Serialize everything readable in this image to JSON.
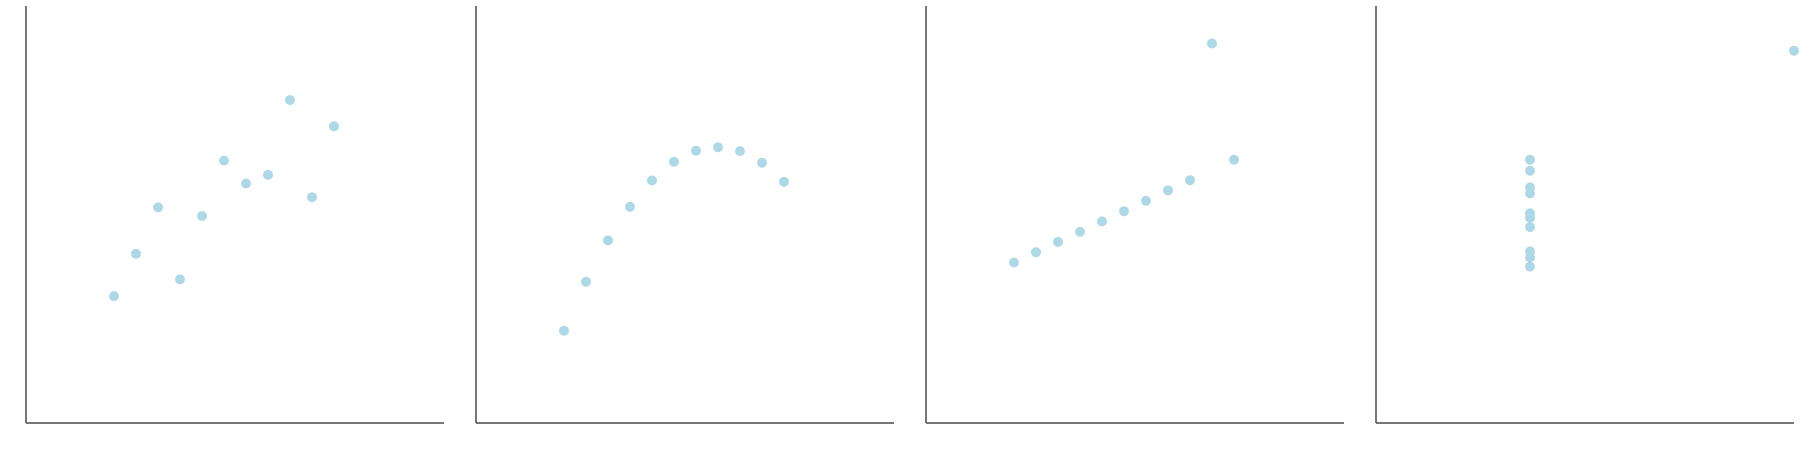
{
  "chart_data": [
    {
      "type": "scatter",
      "title": "",
      "xlabel": "",
      "ylabel": "",
      "xlim": [
        0,
        19
      ],
      "ylim": [
        0,
        14
      ],
      "grid": false,
      "color": "#add8e6",
      "x": [
        10,
        8,
        13,
        9,
        11,
        14,
        6,
        4,
        12,
        7,
        5
      ],
      "y": [
        8.04,
        6.95,
        7.58,
        8.81,
        8.33,
        9.96,
        7.24,
        4.26,
        10.84,
        4.82,
        5.68
      ]
    },
    {
      "type": "scatter",
      "title": "",
      "xlabel": "",
      "ylabel": "",
      "xlim": [
        0,
        19
      ],
      "ylim": [
        0,
        14
      ],
      "grid": false,
      "color": "#add8e6",
      "x": [
        10,
        8,
        13,
        9,
        11,
        14,
        6,
        4,
        12,
        7,
        5
      ],
      "y": [
        9.14,
        8.14,
        8.74,
        8.77,
        9.26,
        8.1,
        6.13,
        3.1,
        9.13,
        7.26,
        4.74
      ]
    },
    {
      "type": "scatter",
      "title": "",
      "xlabel": "",
      "ylabel": "",
      "xlim": [
        0,
        19
      ],
      "ylim": [
        0,
        14
      ],
      "grid": false,
      "color": "#add8e6",
      "x": [
        10,
        8,
        13,
        9,
        11,
        14,
        6,
        4,
        12,
        7,
        5
      ],
      "y": [
        7.46,
        6.77,
        12.74,
        7.11,
        7.81,
        8.84,
        6.08,
        5.39,
        8.15,
        6.42,
        5.73
      ]
    },
    {
      "type": "scatter",
      "title": "",
      "xlabel": "",
      "ylabel": "",
      "xlim": [
        0,
        19
      ],
      "ylim": [
        0,
        14
      ],
      "grid": false,
      "color": "#add8e6",
      "x": [
        7,
        7,
        7,
        7,
        7,
        7,
        7,
        19,
        7,
        7,
        7
      ],
      "y": [
        6.58,
        5.76,
        7.71,
        8.84,
        8.47,
        7.04,
        5.25,
        12.5,
        5.56,
        7.91,
        6.89
      ]
    }
  ]
}
